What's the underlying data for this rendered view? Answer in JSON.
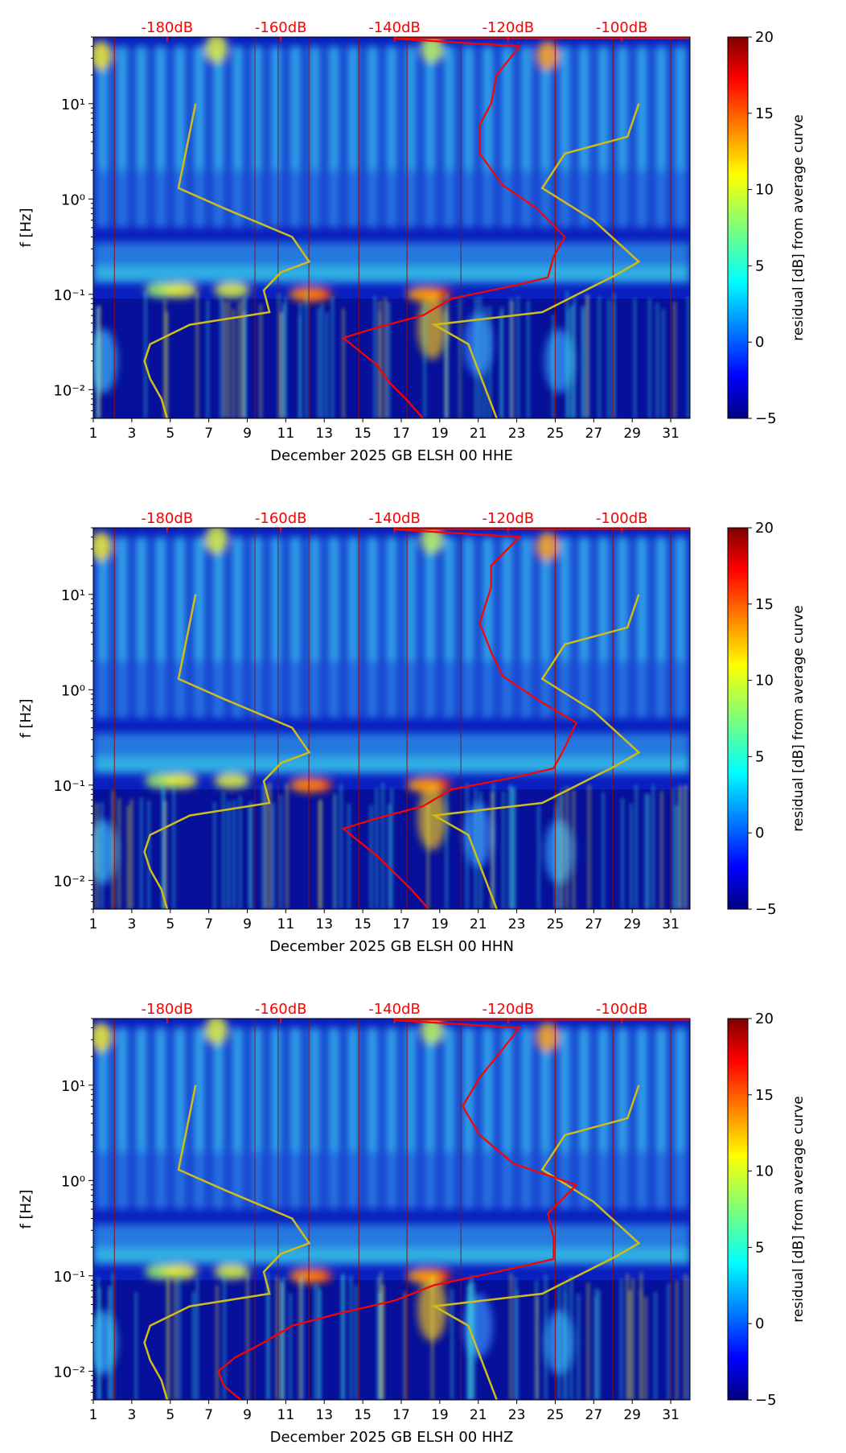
{
  "colorbar": {
    "label": "residual [dB] from average curve",
    "ticks": [
      "20",
      "15",
      "10",
      "5",
      "0",
      "−5"
    ],
    "range": [
      -5,
      20
    ]
  },
  "top_axis": {
    "labels": [
      "-180dB",
      "-160dB",
      "-140dB",
      "-120dB",
      "-100dB"
    ],
    "color": "#ff0000"
  },
  "colors": {
    "red_curve": "#ff0000",
    "yellow_curve": "#cfbd1a"
  },
  "chart_data": [
    {
      "type": "heatmap",
      "title": "",
      "xlabel": "December 2025 GB ELSH 00 HHE",
      "ylabel": "f [Hz]",
      "xticks": [
        "1",
        "3",
        "5",
        "7",
        "9",
        "11",
        "13",
        "15",
        "17",
        "19",
        "21",
        "23",
        "25",
        "27",
        "29",
        "31"
      ],
      "yticks": [
        "10¹",
        "10⁰",
        "10⁻¹",
        "10⁻²"
      ],
      "xlim": [
        1,
        32
      ],
      "ylim_hz": [
        0.005,
        50
      ],
      "red_curve": [
        [
          -135,
          0.005
        ],
        [
          -138,
          0.008
        ],
        [
          -141,
          0.012
        ],
        [
          -143,
          0.018
        ],
        [
          -146,
          0.025
        ],
        [
          -149,
          0.035
        ],
        [
          -143,
          0.045
        ],
        [
          -135,
          0.06
        ],
        [
          -130,
          0.09
        ],
        [
          -120,
          0.12
        ],
        [
          -113,
          0.15
        ],
        [
          -112,
          0.25
        ],
        [
          -110,
          0.4
        ],
        [
          -115,
          0.8
        ],
        [
          -121,
          1.4
        ],
        [
          -125,
          3
        ],
        [
          -125,
          6
        ],
        [
          -123,
          10
        ],
        [
          -122,
          20
        ],
        [
          -118,
          40
        ],
        [
          -140,
          48
        ]
      ],
      "yellow_curve": [
        [
          -175,
          10
        ],
        [
          -178,
          1.3
        ],
        [
          -170,
          0.8
        ],
        [
          -158,
          0.4
        ],
        [
          -155,
          0.22
        ],
        [
          -160,
          0.17
        ],
        [
          -163,
          0.11
        ],
        [
          -162,
          0.065
        ],
        [
          -176,
          0.048
        ],
        [
          -183,
          0.03
        ],
        [
          -184,
          0.02
        ],
        [
          -183,
          0.013
        ],
        [
          -181,
          0.008
        ],
        [
          -180,
          0.005
        ]
      ],
      "yellow_curve_right": [
        [
          -97,
          10
        ],
        [
          -99,
          4.5
        ],
        [
          -110,
          3
        ],
        [
          -114,
          1.3
        ],
        [
          -105,
          0.6
        ],
        [
          -97,
          0.22
        ],
        [
          -101,
          0.16
        ],
        [
          -114,
          0.065
        ],
        [
          -133,
          0.048
        ],
        [
          -127,
          0.03
        ],
        [
          -122,
          0.005
        ]
      ]
    },
    {
      "type": "heatmap",
      "title": "",
      "xlabel": "December 2025 GB ELSH 00 HHN",
      "ylabel": "f [Hz]",
      "xticks": [
        "1",
        "3",
        "5",
        "7",
        "9",
        "11",
        "13",
        "15",
        "17",
        "19",
        "21",
        "23",
        "25",
        "27",
        "29",
        "31"
      ],
      "yticks": [
        "10¹",
        "10⁰",
        "10⁻¹",
        "10⁻²"
      ],
      "xlim": [
        1,
        32
      ],
      "ylim_hz": [
        0.005,
        50
      ],
      "red_curve": [
        [
          -134,
          0.005
        ],
        [
          -137,
          0.008
        ],
        [
          -140,
          0.012
        ],
        [
          -143,
          0.018
        ],
        [
          -146,
          0.025
        ],
        [
          -149,
          0.035
        ],
        [
          -143,
          0.045
        ],
        [
          -135,
          0.06
        ],
        [
          -130,
          0.09
        ],
        [
          -119,
          0.12
        ],
        [
          -112,
          0.15
        ],
        [
          -110,
          0.25
        ],
        [
          -108,
          0.45
        ],
        [
          -115,
          0.8
        ],
        [
          -121,
          1.4
        ],
        [
          -123,
          2.5
        ],
        [
          -125,
          5
        ],
        [
          -123,
          12
        ],
        [
          -123,
          20
        ],
        [
          -118,
          40
        ],
        [
          -140,
          48
        ]
      ],
      "yellow_curve": [
        [
          -175,
          10
        ],
        [
          -178,
          1.3
        ],
        [
          -170,
          0.8
        ],
        [
          -158,
          0.4
        ],
        [
          -155,
          0.22
        ],
        [
          -160,
          0.17
        ],
        [
          -163,
          0.11
        ],
        [
          -162,
          0.065
        ],
        [
          -176,
          0.048
        ],
        [
          -183,
          0.03
        ],
        [
          -184,
          0.02
        ],
        [
          -183,
          0.013
        ],
        [
          -181,
          0.008
        ],
        [
          -180,
          0.005
        ]
      ],
      "yellow_curve_right": [
        [
          -97,
          10
        ],
        [
          -99,
          4.5
        ],
        [
          -110,
          3
        ],
        [
          -114,
          1.3
        ],
        [
          -105,
          0.6
        ],
        [
          -97,
          0.22
        ],
        [
          -101,
          0.16
        ],
        [
          -114,
          0.065
        ],
        [
          -133,
          0.048
        ],
        [
          -127,
          0.03
        ],
        [
          -122,
          0.005
        ]
      ]
    },
    {
      "type": "heatmap",
      "title": "",
      "xlabel": "December 2025 GB ELSH 00 HHZ",
      "ylabel": "f [Hz]",
      "xticks": [
        "1",
        "3",
        "5",
        "7",
        "9",
        "11",
        "13",
        "15",
        "17",
        "19",
        "21",
        "23",
        "25",
        "27",
        "29",
        "31"
      ],
      "yticks": [
        "10¹",
        "10⁰",
        "10⁻¹",
        "10⁻²"
      ],
      "xlim": [
        1,
        32
      ],
      "ylim_hz": [
        0.005,
        50
      ],
      "red_curve": [
        [
          -167,
          0.005
        ],
        [
          -170,
          0.007
        ],
        [
          -171,
          0.01
        ],
        [
          -168,
          0.014
        ],
        [
          -163,
          0.02
        ],
        [
          -158,
          0.03
        ],
        [
          -150,
          0.04
        ],
        [
          -140,
          0.055
        ],
        [
          -133,
          0.08
        ],
        [
          -122,
          0.11
        ],
        [
          -112,
          0.15
        ],
        [
          -112,
          0.25
        ],
        [
          -113,
          0.45
        ],
        [
          -108,
          0.9
        ],
        [
          -119,
          1.5
        ],
        [
          -125,
          3
        ],
        [
          -128,
          6
        ],
        [
          -125,
          12
        ],
        [
          -122,
          20
        ],
        [
          -118,
          40
        ],
        [
          -140,
          48
        ]
      ],
      "yellow_curve": [
        [
          -175,
          10
        ],
        [
          -178,
          1.3
        ],
        [
          -170,
          0.8
        ],
        [
          -158,
          0.4
        ],
        [
          -155,
          0.22
        ],
        [
          -160,
          0.17
        ],
        [
          -163,
          0.11
        ],
        [
          -162,
          0.065
        ],
        [
          -176,
          0.048
        ],
        [
          -183,
          0.03
        ],
        [
          -184,
          0.02
        ],
        [
          -183,
          0.013
        ],
        [
          -181,
          0.008
        ],
        [
          -180,
          0.005
        ]
      ],
      "yellow_curve_right": [
        [
          -97,
          10
        ],
        [
          -99,
          4.5
        ],
        [
          -110,
          3
        ],
        [
          -114,
          1.3
        ],
        [
          -105,
          0.6
        ],
        [
          -97,
          0.22
        ],
        [
          -101,
          0.16
        ],
        [
          -114,
          0.065
        ],
        [
          -133,
          0.048
        ],
        [
          -127,
          0.03
        ],
        [
          -122,
          0.005
        ]
      ]
    }
  ]
}
